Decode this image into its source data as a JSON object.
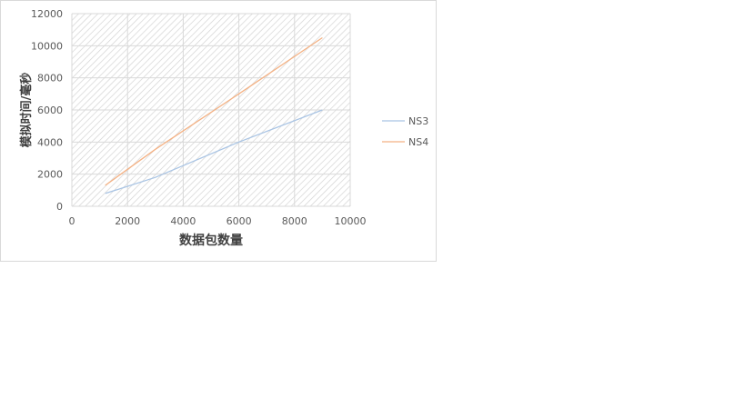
{
  "chart_data": {
    "type": "line",
    "title": "",
    "xlabel": "数据包数量",
    "ylabel": "模拟时间/毫秒",
    "xlim": [
      0,
      10000
    ],
    "ylim": [
      0,
      12000
    ],
    "xticks": [
      0,
      2000,
      4000,
      6000,
      8000,
      10000
    ],
    "yticks": [
      0,
      2000,
      4000,
      6000,
      8000,
      10000,
      12000
    ],
    "grid": true,
    "plot_background": "diagonal hatch",
    "legend_position": "right",
    "series": [
      {
        "name": "NS3",
        "color": "#a9c4e4",
        "points": [
          [
            1200,
            800
          ],
          [
            3000,
            1800
          ],
          [
            6000,
            4000
          ],
          [
            9000,
            6000
          ]
        ]
      },
      {
        "name": "NS4",
        "color": "#f4b183",
        "points": [
          [
            1200,
            1300
          ],
          [
            3000,
            3550
          ],
          [
            6000,
            7000
          ],
          [
            9000,
            10500
          ]
        ]
      }
    ]
  }
}
